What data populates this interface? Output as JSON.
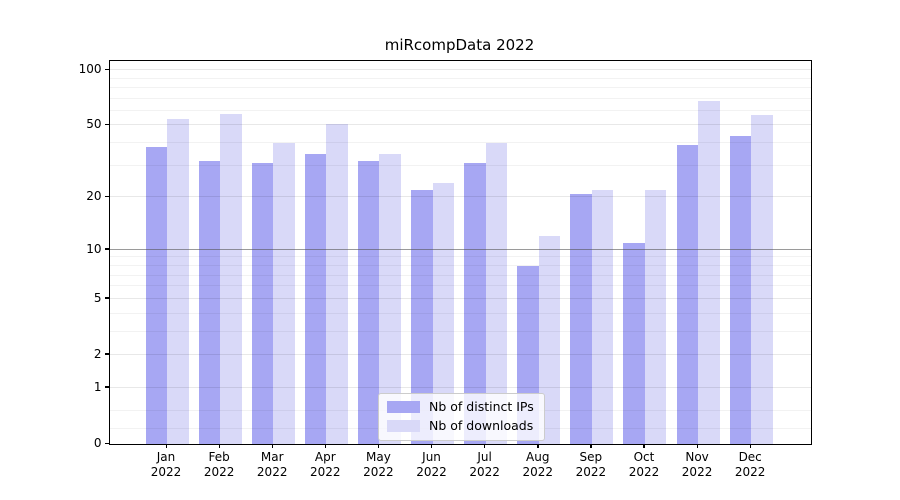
{
  "chart_data": {
    "type": "bar",
    "title": "miRcompData 2022",
    "categories": [
      "Jan 2022",
      "Feb 2022",
      "Mar 2022",
      "Apr 2022",
      "May 2022",
      "Jun 2022",
      "Jul 2022",
      "Aug 2022",
      "Sep 2022",
      "Oct 2022",
      "Nov 2022",
      "Dec 2022"
    ],
    "series": [
      {
        "name": "Nb of distinct IPs",
        "color": "#a7a7f3",
        "values": [
          38,
          32,
          31,
          35,
          32,
          22,
          31,
          8,
          21,
          11,
          39,
          44
        ]
      },
      {
        "name": "Nb of downloads",
        "color": "#d9d9f8",
        "values": [
          54,
          58,
          40,
          51,
          35,
          24,
          40,
          12,
          22,
          22,
          68,
          57
        ]
      }
    ],
    "xlabel": "",
    "ylabel": "",
    "y_scale": "log10(1+v)",
    "y_ticks": [
      0,
      1,
      2,
      5,
      10,
      20,
      50,
      100
    ],
    "y_minor_ticks": [
      0.2,
      0.5,
      3,
      4,
      6,
      7,
      8,
      9,
      30,
      40,
      60,
      70,
      80,
      90
    ],
    "y_max": 112,
    "emphasis_gridline": 10,
    "grid": "both",
    "legend_position": "lower center",
    "background": "#ffffff"
  }
}
